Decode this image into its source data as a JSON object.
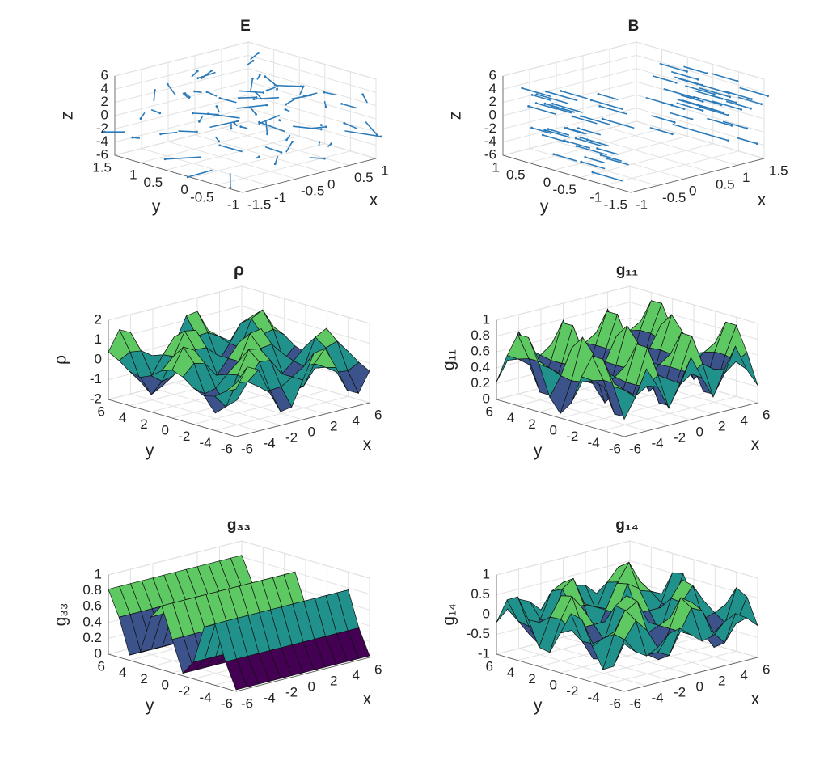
{
  "chart_data": [
    {
      "type": "quiver3",
      "title": "E",
      "xlabel": "x",
      "ylabel": "y",
      "zlabel": "z",
      "color": "#2b7bba",
      "xlim": [
        -1.5,
        1
      ],
      "xticks": [
        -1.5,
        -1,
        -0.5,
        0,
        0.5,
        1
      ],
      "ylim": [
        -1,
        1.5
      ],
      "yticks": [
        -1,
        -0.5,
        0,
        0.5,
        1,
        1.5
      ],
      "zlim": [
        -6,
        6
      ],
      "zticks": [
        -6,
        -4,
        -2,
        0,
        2,
        4,
        6
      ],
      "grid": true
    },
    {
      "type": "quiver3",
      "title": "B",
      "xlabel": "x",
      "ylabel": "y",
      "zlabel": "z",
      "color": "#2b7bba",
      "xlim": [
        -1,
        1.5
      ],
      "xticks": [
        -1,
        -0.5,
        0,
        0.5,
        1,
        1.5
      ],
      "ylim": [
        -1.5,
        1
      ],
      "yticks": [
        -1.5,
        -1,
        -0.5,
        0,
        0.5,
        1
      ],
      "zlim": [
        -6,
        6
      ],
      "zticks": [
        -6,
        -4,
        -2,
        0,
        2,
        4,
        6
      ],
      "grid": true
    },
    {
      "type": "surface",
      "title": "ρ",
      "xlabel": "x",
      "ylabel": "y",
      "zlabel": "ρ",
      "xlim": [
        -6,
        6
      ],
      "xticks": [
        -6,
        -4,
        -2,
        0,
        2,
        4,
        6
      ],
      "ylim": [
        -6,
        6
      ],
      "yticks": [
        -6,
        -4,
        -2,
        0,
        2,
        4,
        6
      ],
      "zlim": [
        -2,
        2
      ],
      "zticks": [
        -2,
        -1,
        0,
        1,
        2
      ],
      "grid": true
    },
    {
      "type": "surface",
      "title": "g₁₁",
      "xlabel": "x",
      "ylabel": "y",
      "zlabel": "g₁₁",
      "xlim": [
        -6,
        6
      ],
      "xticks": [
        -6,
        -4,
        -2,
        0,
        2,
        4,
        6
      ],
      "ylim": [
        -6,
        6
      ],
      "yticks": [
        -6,
        -4,
        -2,
        0,
        2,
        4,
        6
      ],
      "zlim": [
        0,
        1
      ],
      "zticks": [
        0,
        0.2,
        0.4,
        0.6,
        0.8,
        1
      ],
      "grid": true
    },
    {
      "type": "surface",
      "title": "g₃₃",
      "xlabel": "x",
      "ylabel": "y",
      "zlabel": "g₃₃",
      "xlim": [
        -6,
        6
      ],
      "xticks": [
        -6,
        -4,
        -2,
        0,
        2,
        4,
        6
      ],
      "ylim": [
        -6,
        6
      ],
      "yticks": [
        -6,
        -4,
        -2,
        0,
        2,
        4,
        6
      ],
      "zlim": [
        0,
        1
      ],
      "zticks": [
        0,
        0.2,
        0.4,
        0.6,
        0.8,
        1
      ],
      "grid": true
    },
    {
      "type": "surface",
      "title": "g₁₄",
      "xlabel": "x",
      "ylabel": "y",
      "zlabel": "g₁₄",
      "xlim": [
        -6,
        6
      ],
      "xticks": [
        -6,
        -4,
        -2,
        0,
        2,
        4,
        6
      ],
      "ylim": [
        -6,
        6
      ],
      "yticks": [
        -6,
        -4,
        -2,
        0,
        2,
        4,
        6
      ],
      "zlim": [
        -1,
        1
      ],
      "zticks": [
        -1,
        -0.5,
        0,
        0.5,
        1
      ],
      "grid": true
    }
  ]
}
